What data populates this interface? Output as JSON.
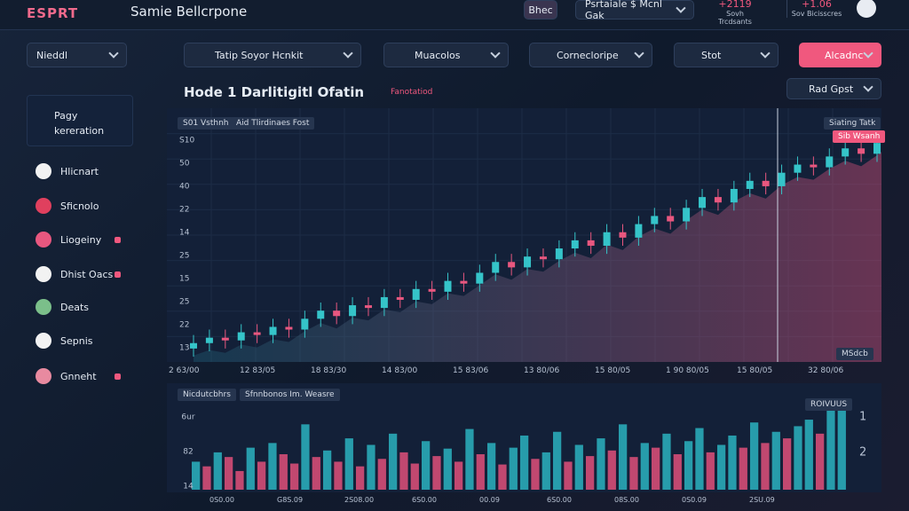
{
  "header": {
    "logo": "ESPRT",
    "title": "Samie Bellcrpone",
    "button": "Bhec",
    "dropdown": "Psrtaiale $ Mcnl Gak",
    "stats": [
      {
        "value": "+2119",
        "label": "Sovh Trcdsants"
      },
      {
        "value": "+1.06",
        "label": "Sov Bicisscres"
      }
    ]
  },
  "toolbar": [
    "Nieddl",
    "Tatip Soyor Hcnkit",
    "Muacolos",
    "Cornecloripe",
    "Stot",
    "Alcadnc"
  ],
  "sidebar": {
    "card": [
      "Pagy",
      "kereration"
    ],
    "items": [
      "Hlicnart",
      "Sficnolo",
      "Liogeiny",
      "Dhist Oacs",
      "Deats",
      "Sepnis",
      "Gnneht"
    ]
  },
  "price_chart": {
    "title": "Hode 1 Darlitigitl Ofatin",
    "tag": "Fanotatiod",
    "dropdown": "Rad Gpst",
    "labels": [
      "S01 Vsthnh",
      "Aid Tlirdinaes Fost"
    ],
    "right_labels": [
      "Siating Tatk",
      "Sib Wsanh"
    ],
    "corner": "MSdcb",
    "y_labels": [
      "S10",
      "50",
      "40",
      "22",
      "14",
      "25",
      "15",
      "25",
      "22",
      "13"
    ],
    "x_labels": [
      "2 63/00",
      "12 83/05",
      "18 83/30",
      "14 83/00",
      "15 83/06",
      "13 80/06",
      "15 80/05",
      "1 90 80/05",
      "15 80/05",
      "32 80/06"
    ],
    "up_color": "#35c4c9",
    "down_color": "#e8577f",
    "candles": [
      [
        12,
        17,
        9,
        14
      ],
      [
        14,
        19,
        11,
        16
      ],
      [
        16,
        19,
        12,
        15
      ],
      [
        15,
        21,
        12,
        18
      ],
      [
        18,
        21,
        14,
        17
      ],
      [
        17,
        23,
        14,
        20
      ],
      [
        20,
        23,
        16,
        19
      ],
      [
        19,
        26,
        16,
        23
      ],
      [
        23,
        29,
        20,
        26
      ],
      [
        26,
        29,
        21,
        24
      ],
      [
        24,
        31,
        21,
        28
      ],
      [
        28,
        31,
        24,
        27
      ],
      [
        27,
        34,
        24,
        31
      ],
      [
        31,
        34,
        27,
        30
      ],
      [
        30,
        37,
        27,
        34
      ],
      [
        34,
        37,
        30,
        33
      ],
      [
        33,
        40,
        30,
        37
      ],
      [
        37,
        40,
        33,
        36
      ],
      [
        36,
        43,
        33,
        40
      ],
      [
        40,
        47,
        37,
        44
      ],
      [
        44,
        47,
        39,
        42
      ],
      [
        42,
        49,
        39,
        46
      ],
      [
        46,
        49,
        42,
        45
      ],
      [
        45,
        52,
        42,
        49
      ],
      [
        49,
        55,
        46,
        52
      ],
      [
        52,
        55,
        47,
        50
      ],
      [
        50,
        58,
        47,
        55
      ],
      [
        55,
        58,
        50,
        53
      ],
      [
        53,
        61,
        50,
        58
      ],
      [
        58,
        64,
        55,
        61
      ],
      [
        61,
        64,
        56,
        59
      ],
      [
        59,
        67,
        56,
        64
      ],
      [
        64,
        71,
        61,
        68
      ],
      [
        68,
        71,
        63,
        66
      ],
      [
        66,
        74,
        63,
        71
      ],
      [
        71,
        77,
        68,
        74
      ],
      [
        74,
        77,
        69,
        72
      ],
      [
        72,
        80,
        69,
        77
      ],
      [
        77,
        83,
        74,
        80
      ],
      [
        80,
        83,
        76,
        79
      ],
      [
        79,
        86,
        76,
        83
      ],
      [
        83,
        89,
        80,
        86
      ],
      [
        86,
        89,
        81,
        84
      ],
      [
        84,
        91,
        81,
        88
      ]
    ]
  },
  "volume_chart": {
    "labels": [
      "Nicdutcbhrs",
      "Sfnnbonos Im. Weasre"
    ],
    "corner": "ROIVUUS",
    "y_labels": [
      "6ur",
      "82",
      "14"
    ],
    "y2_labels": [
      "1",
      "2"
    ],
    "x_labels": [
      "0S0.00",
      "G8S.09",
      "2S08.00",
      "6S0.00",
      "00.09",
      "6S0.00",
      "08S.00",
      "0S0.09",
      "2SU.09"
    ],
    "up_color": "#2bb3c0",
    "down_color": "#e0507a",
    "values": [
      30,
      25,
      40,
      35,
      20,
      45,
      30,
      50,
      38,
      28,
      70,
      35,
      42,
      30,
      55,
      25,
      48,
      33,
      60,
      40,
      28,
      52,
      36,
      44,
      30,
      65,
      38,
      50,
      27,
      45,
      58,
      33,
      40,
      62,
      30,
      48,
      36,
      55,
      42,
      70,
      35,
      50,
      45,
      60,
      38,
      52,
      66,
      40,
      48,
      58,
      45,
      72,
      50,
      62,
      55,
      68,
      75,
      60,
      85,
      95
    ]
  }
}
